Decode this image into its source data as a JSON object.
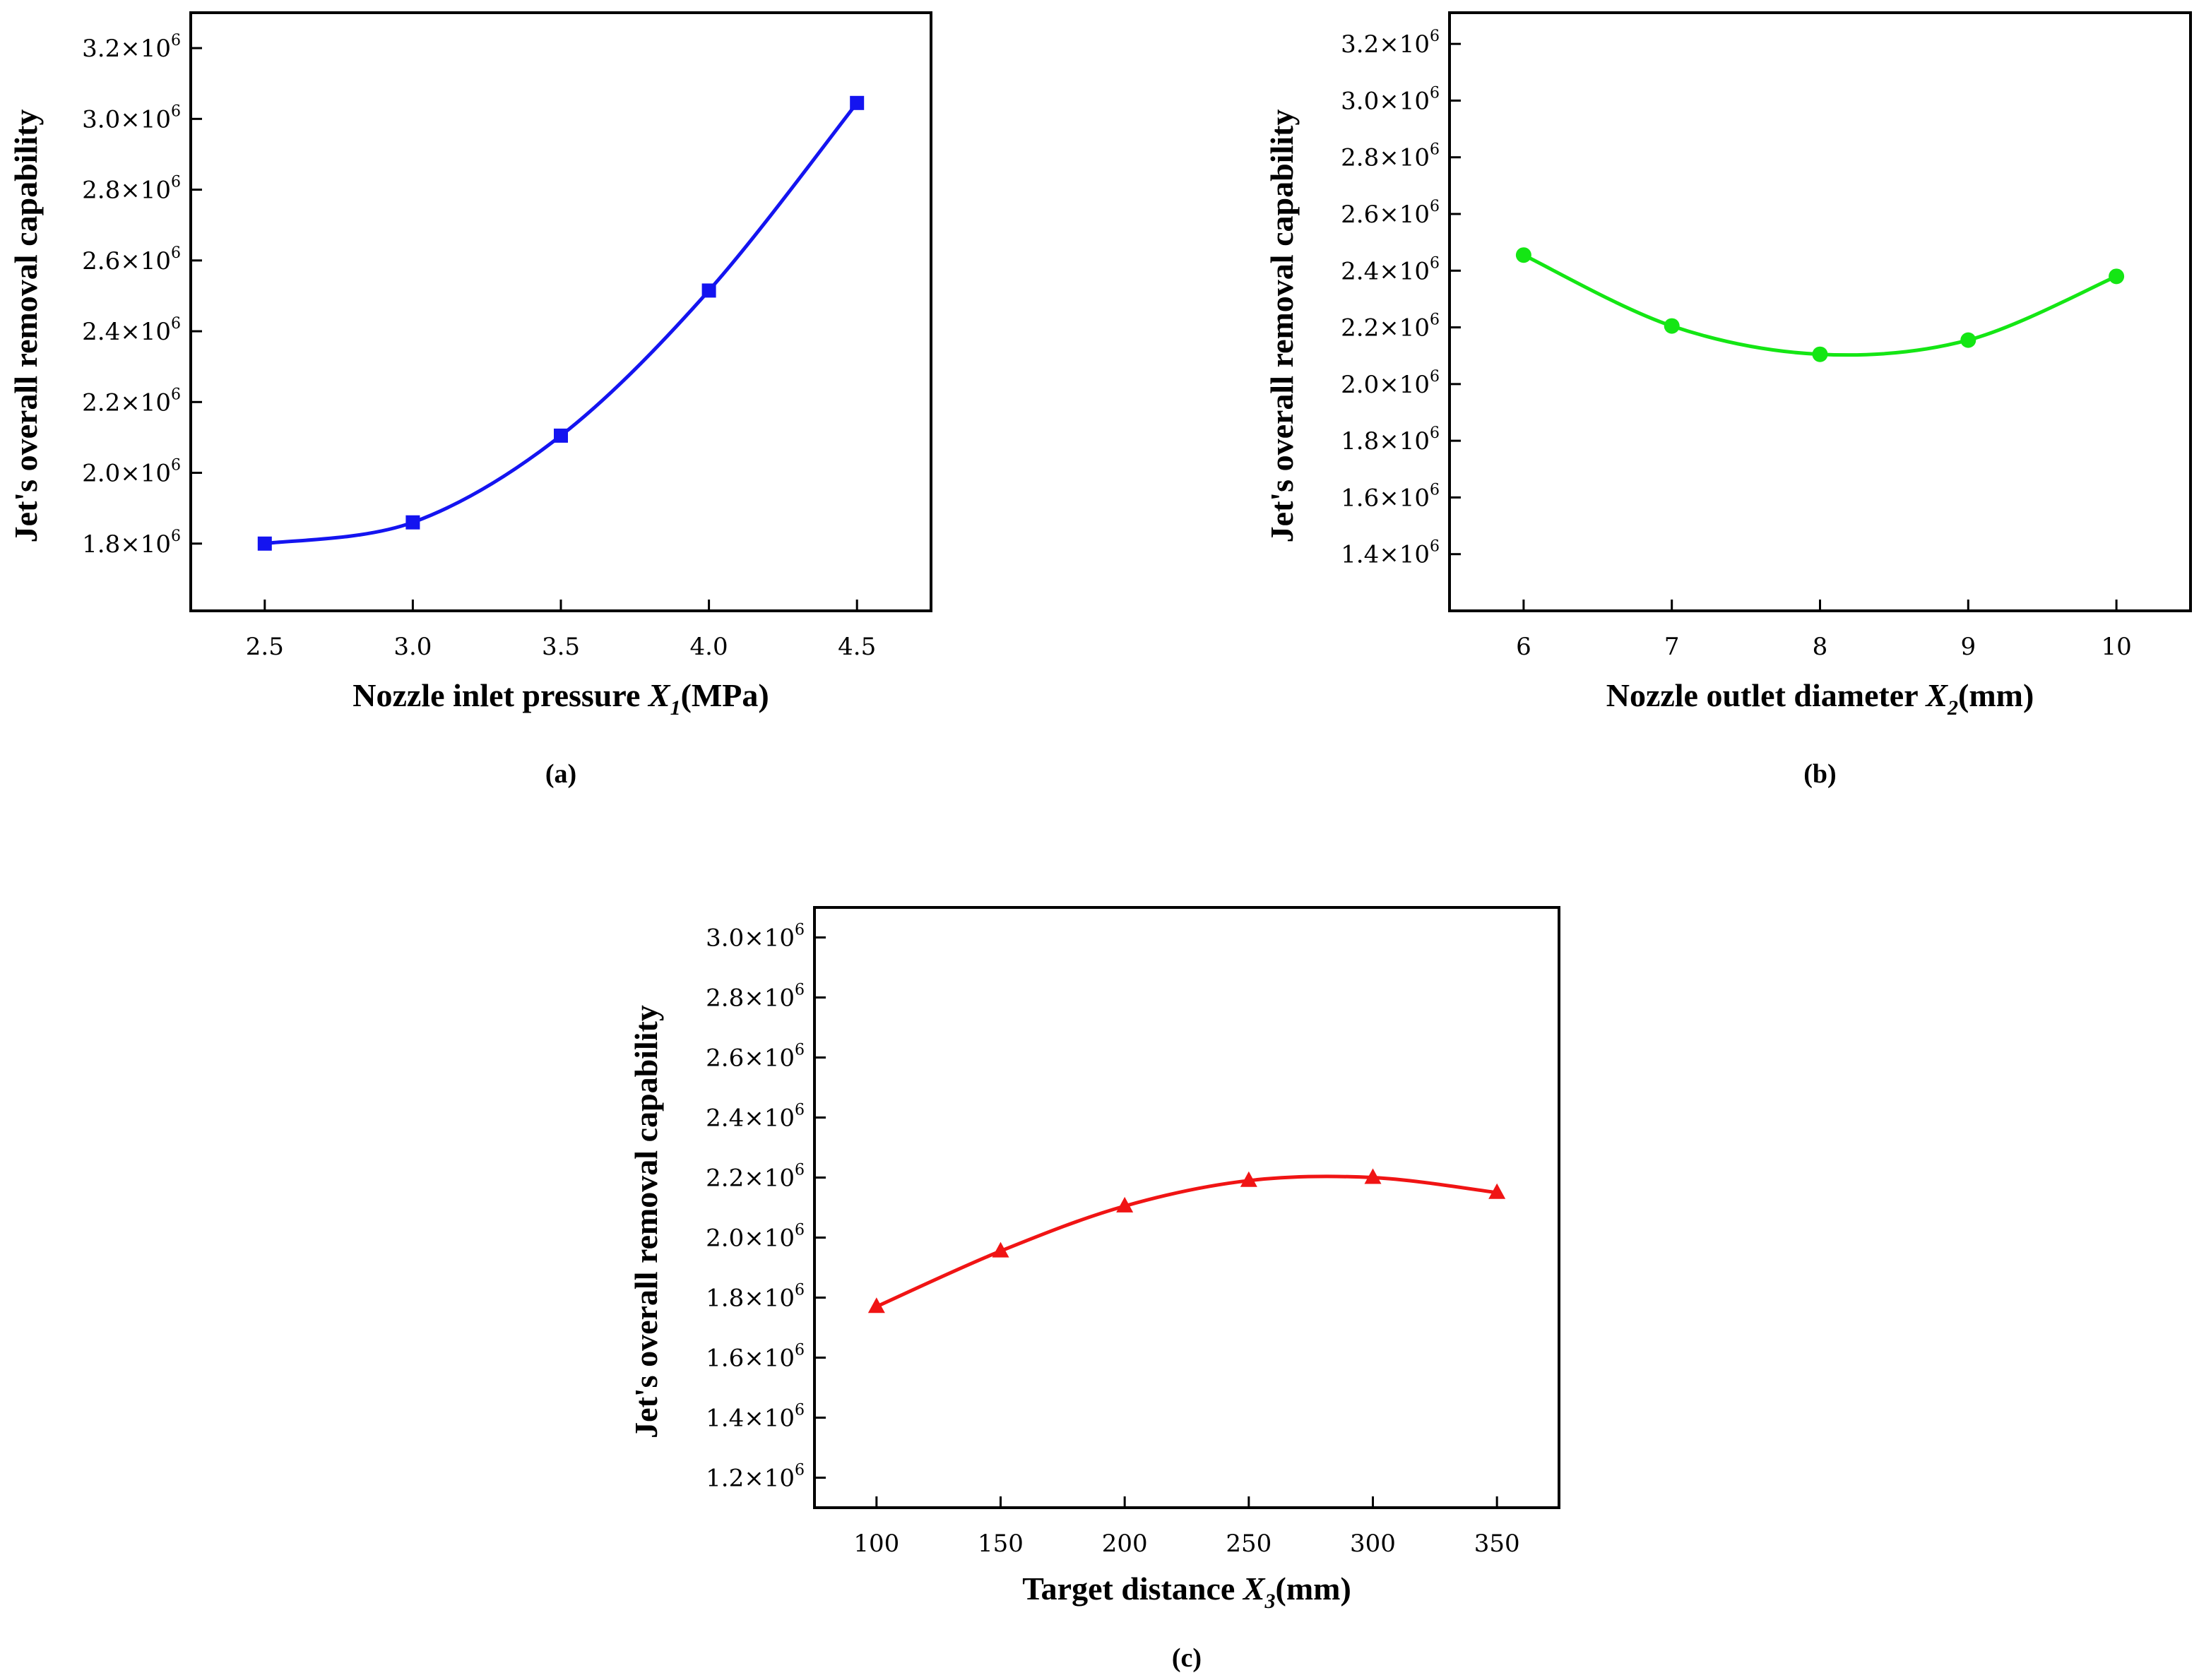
{
  "chart_data": [
    {
      "type": "line",
      "panel_label": "(a)",
      "xlabel_main": "Nozzle inlet pressure ",
      "xlabel_symbol": "X",
      "xlabel_subscript": "1",
      "xlabel_unit": "(MPa)",
      "ylabel": "Jet's overall removal capability",
      "x": [
        2.5,
        3.0,
        3.5,
        4.0,
        4.5
      ],
      "x_tick_labels": [
        "2.5",
        "3.0",
        "3.5",
        "4.0",
        "4.5"
      ],
      "xlim": [
        2.25,
        4.75
      ],
      "y_ticks": [
        1.8,
        2.0,
        2.2,
        2.4,
        2.6,
        2.8,
        3.0,
        3.2
      ],
      "y_tick_mantissas": [
        "1.8",
        "2.0",
        "2.2",
        "2.4",
        "2.6",
        "2.8",
        "3.0",
        "3.2"
      ],
      "y_tick_exponent": "6",
      "ylim": [
        1.61,
        3.3
      ],
      "series": [
        {
          "values": [
            1.8,
            1.86,
            2.105,
            2.515,
            3.045
          ],
          "color": "#1414f0",
          "marker": "square"
        }
      ]
    },
    {
      "type": "line",
      "panel_label": "(b)",
      "xlabel_main": "Nozzle outlet diameter ",
      "xlabel_symbol": "X",
      "xlabel_subscript": "2",
      "xlabel_unit": "(mm)",
      "ylabel": "Jet's overall removal capability",
      "x": [
        6,
        7,
        8,
        9,
        10
      ],
      "x_tick_labels": [
        "6",
        "7",
        "8",
        "9",
        "10"
      ],
      "xlim": [
        5.5,
        10.5
      ],
      "y_ticks": [
        1.4,
        1.6,
        1.8,
        2.0,
        2.2,
        2.4,
        2.6,
        2.8,
        3.0,
        3.2
      ],
      "y_tick_mantissas": [
        "1.4",
        "1.6",
        "1.8",
        "2.0",
        "2.2",
        "2.4",
        "2.6",
        "2.8",
        "3.0",
        "3.2"
      ],
      "y_tick_exponent": "6",
      "ylim": [
        1.2,
        3.31
      ],
      "series": [
        {
          "values": [
            2.455,
            2.205,
            2.105,
            2.155,
            2.38
          ],
          "color": "#14e614",
          "marker": "circle"
        }
      ]
    },
    {
      "type": "line",
      "panel_label": "(c)",
      "xlabel_main": "Target distance ",
      "xlabel_symbol": "X",
      "xlabel_subscript": "3",
      "xlabel_unit": "(mm)",
      "ylabel": "Jet's overall removal capability",
      "x": [
        100,
        150,
        200,
        250,
        300,
        350
      ],
      "x_tick_labels": [
        "100",
        "150",
        "200",
        "250",
        "300",
        "350"
      ],
      "xlim": [
        75,
        375
      ],
      "y_ticks": [
        1.2,
        1.4,
        1.6,
        1.8,
        2.0,
        2.2,
        2.4,
        2.6,
        2.8,
        3.0
      ],
      "y_tick_mantissas": [
        "1.2",
        "1.4",
        "1.6",
        "1.8",
        "2.0",
        "2.2",
        "2.4",
        "2.6",
        "2.8",
        "3.0"
      ],
      "y_tick_exponent": "6",
      "ylim": [
        1.1,
        3.1
      ],
      "series": [
        {
          "values": [
            1.77,
            1.955,
            2.105,
            2.19,
            2.2,
            2.15
          ],
          "color": "#f01414",
          "marker": "triangle"
        }
      ]
    }
  ]
}
